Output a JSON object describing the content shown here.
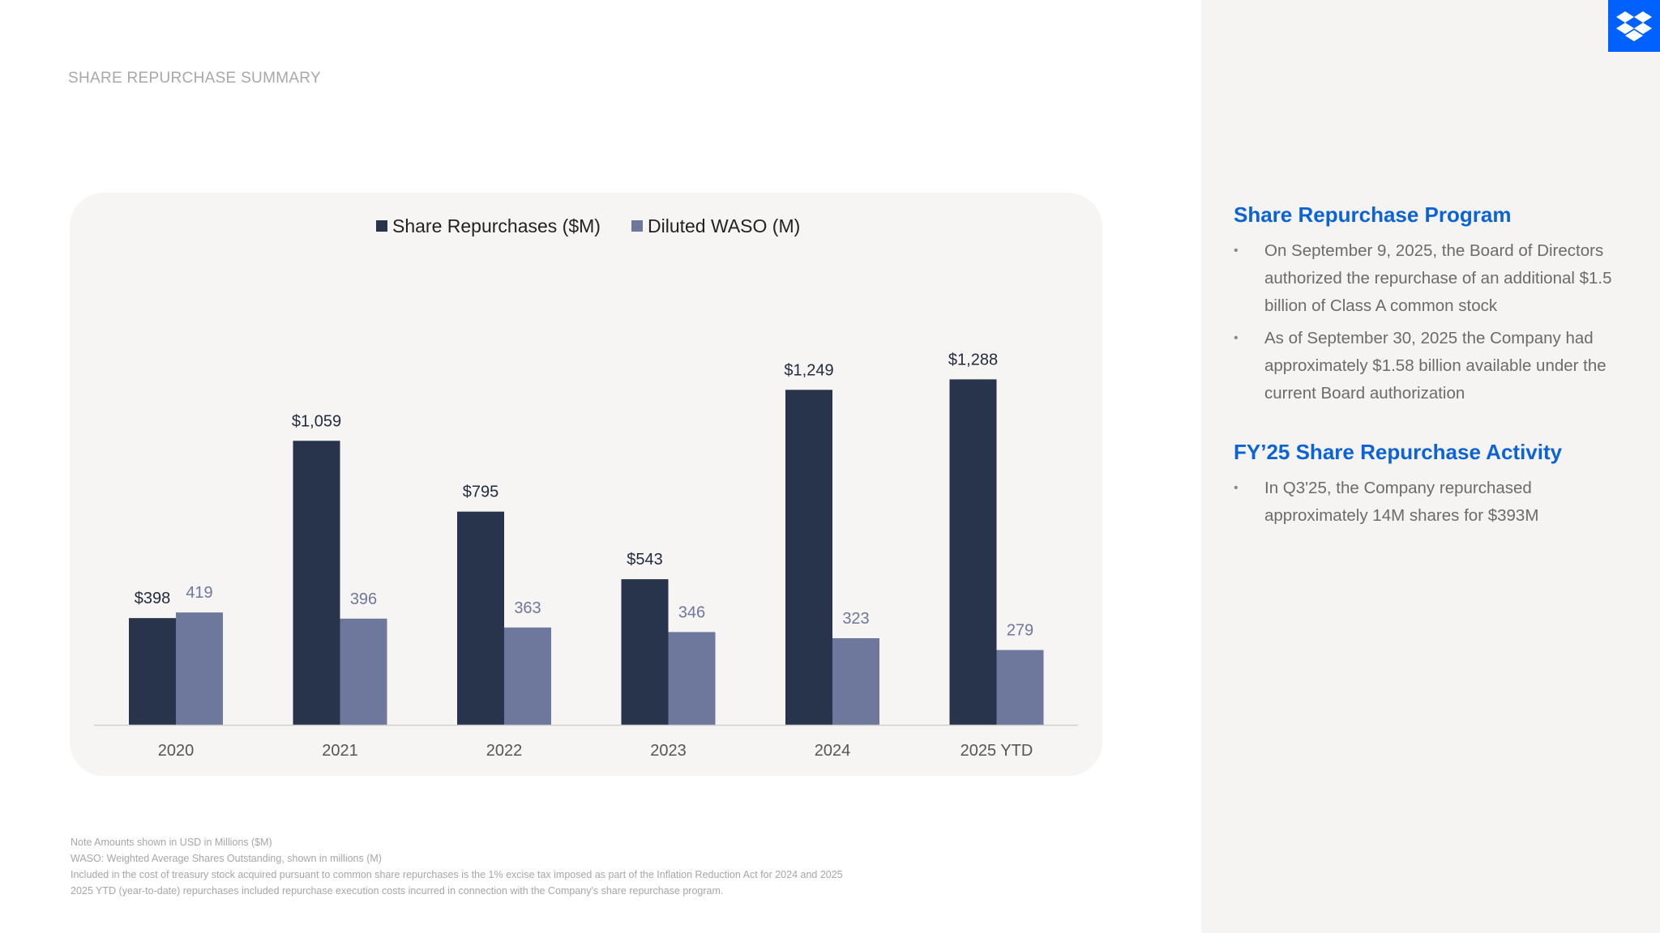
{
  "page": {
    "title": "SHARE REPURCHASE SUMMARY"
  },
  "colors": {
    "primary_series": "#28344b",
    "secondary_series": "#6e779c",
    "accent": "#0061fe",
    "heading": "#0b63d6"
  },
  "logo": {
    "icon": "dropbox-logo-icon"
  },
  "chart_data": {
    "type": "bar",
    "categories": [
      "2020",
      "2021",
      "2022",
      "2023",
      "2024",
      "2025 YTD"
    ],
    "series": [
      {
        "name": "Share Repurchases ($M)",
        "values": [
          398,
          1059,
          795,
          543,
          1249,
          1288
        ],
        "labels": [
          "$398",
          "$1,059",
          "$795",
          "$543",
          "$1,249",
          "$1,288"
        ]
      },
      {
        "name": "Diluted WASO (M)",
        "values": [
          419,
          396,
          363,
          346,
          323,
          279
        ],
        "labels": [
          "419",
          "396",
          "363",
          "346",
          "323",
          "279"
        ]
      }
    ],
    "legend_position": "top-center",
    "grid": false
  },
  "sidebar": {
    "program": {
      "heading": "Share Repurchase Program",
      "bullets": [
        "On September 9, 2025, the Board of Directors authorized the repurchase of an additional $1.5 billion of Class A common stock",
        "As of September 30, 2025 the Company had approximately $1.58 billion available under the current Board authorization"
      ]
    },
    "activity": {
      "heading": "FY’25 Share Repurchase Activity",
      "bullets": [
        "In Q3'25, the Company repurchased approximately 14M shares for $393M"
      ]
    },
    "bullet_char": "•"
  },
  "footnotes": [
    "Note Amounts shown in USD in Millions ($M)",
    "WASO: Weighted Average Shares Outstanding, shown in millions (M)",
    "Included in the cost of treasury stock acquired pursuant to common share repurchases is the 1% excise tax imposed as part of the Inflation Reduction Act for 2024 and 2025",
    "2025 YTD (year-to-date) repurchases included repurchase execution costs incurred in connection with the Company's share repurchase program."
  ]
}
